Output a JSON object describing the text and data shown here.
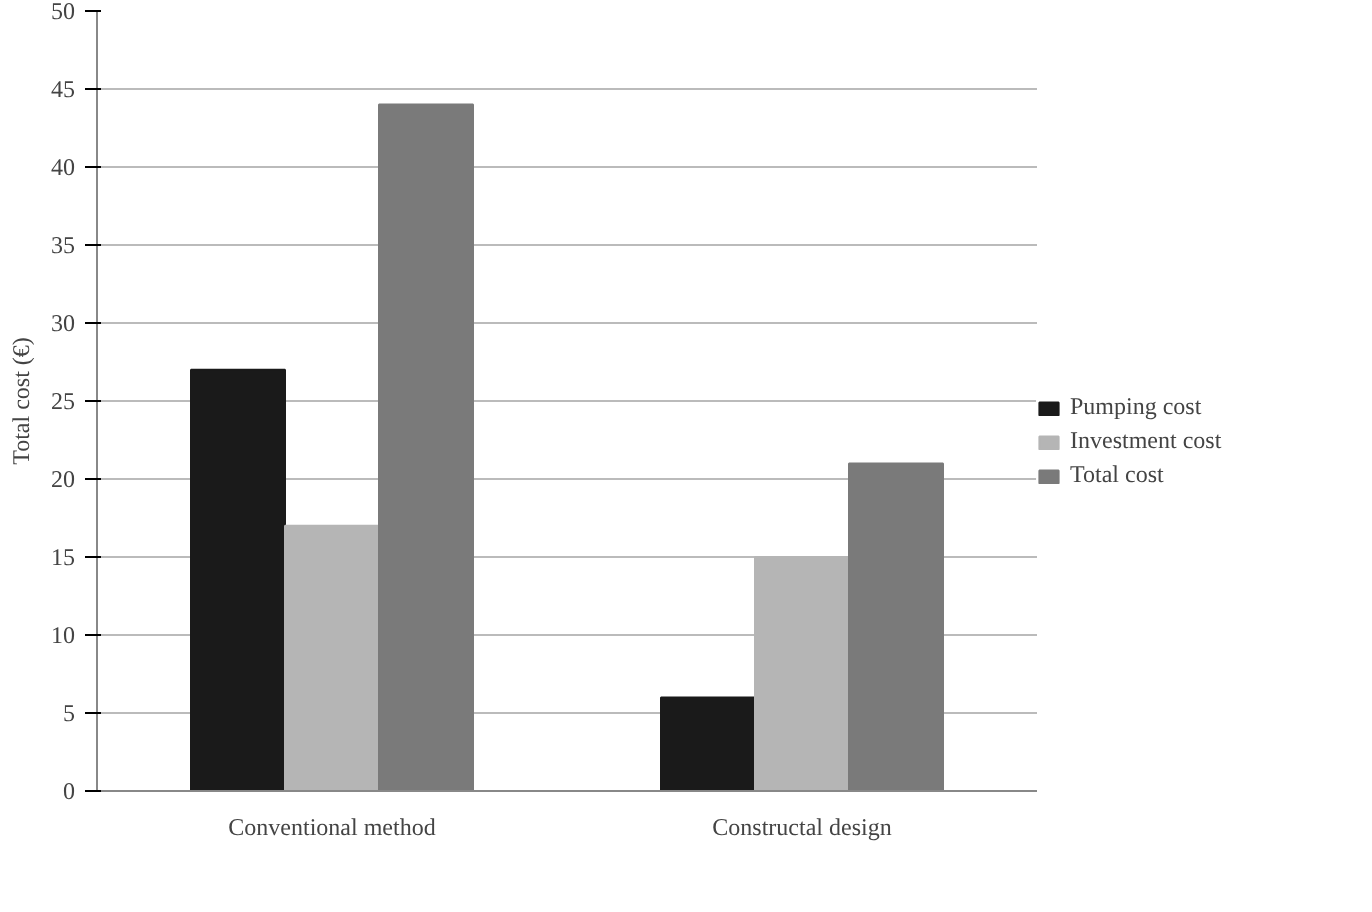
{
  "chart_data": {
    "type": "bar",
    "ylabel": "Total cost (€)",
    "categories": [
      "Conventional method",
      "Constructal design"
    ],
    "series": [
      {
        "name": "Pumping cost",
        "color": "#1a1a1a",
        "values": [
          27,
          6
        ]
      },
      {
        "name": "Investment cost",
        "color": "#b5b5b5",
        "values": [
          17,
          15
        ]
      },
      {
        "name": "Total cost",
        "color": "#7a7a7a",
        "values": [
          44,
          21
        ]
      }
    ],
    "ylim": [
      0,
      50
    ],
    "yticks": [
      0,
      5,
      10,
      15,
      20,
      25,
      30,
      35,
      40,
      45,
      50
    ],
    "grid": "y",
    "legend": "right"
  }
}
